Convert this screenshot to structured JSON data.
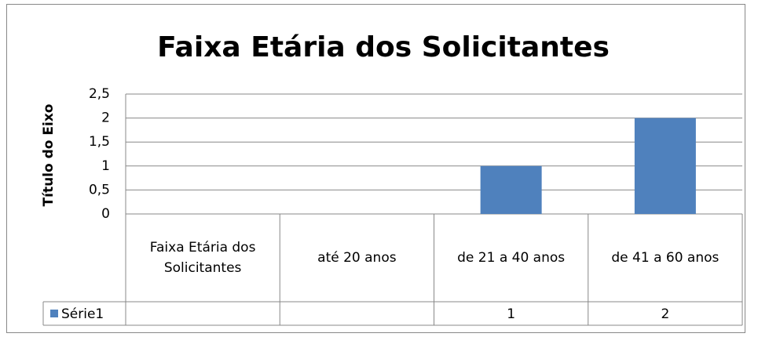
{
  "chart_data": {
    "type": "bar",
    "title": "Faixa Etária dos Solicitantes",
    "y_label": "Título do Eixo",
    "categories": [
      "Faixa Etária dos Solicitantes",
      "até 20 anos",
      "de 21 a 40 anos",
      "de 41 a 60 anos"
    ],
    "series": [
      {
        "name": "Série1",
        "color": "#4f81bd",
        "values": [
          null,
          null,
          1,
          2
        ]
      }
    ],
    "ylim": [
      0,
      2.5
    ],
    "yticks": [
      0,
      {
        "value": 0.5,
        "label": "0,5"
      },
      1,
      {
        "value": 1.5,
        "label": "1,5"
      },
      2,
      {
        "value": 2.5,
        "label": "2,5"
      }
    ],
    "grid": true,
    "data_table": true
  }
}
